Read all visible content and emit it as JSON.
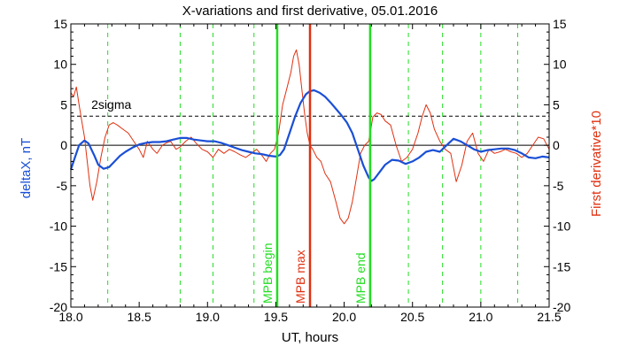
{
  "chart_data": {
    "type": "line",
    "title": "X-variations and first derivative, 05.01.2016",
    "xlabel": "UT, hours",
    "ylabel": "deltaX, nT",
    "ylabel_right": "First derivative*10",
    "xlim": [
      18.0,
      21.5
    ],
    "ylim": [
      -20,
      15
    ],
    "ylim_right": [
      -20,
      15
    ],
    "x_ticks": [
      "18.0",
      "18.5",
      "19.0",
      "19.5",
      "20.0",
      "20.5",
      "21.0",
      "21.5"
    ],
    "y_ticks": [
      "15",
      "10",
      "5",
      "0",
      "-5",
      "-10",
      "-15",
      "-20"
    ],
    "colors": {
      "deltax": "#1a4fd6",
      "derivative": "#e03010",
      "mpb": "#22dd22",
      "mpb_max": "#e03010",
      "dashed_green": "#22dd22"
    },
    "sigma_level": 3.6,
    "sigma_label": "2sigma",
    "zero_line": 0,
    "dashed_green_x": [
      18.27,
      18.8,
      19.04,
      19.34,
      20.47,
      20.72,
      21.0,
      21.27
    ],
    "vlines": [
      {
        "x": 19.51,
        "label": "MPB begin",
        "color": "#22dd22"
      },
      {
        "x": 19.75,
        "label": "MPB max",
        "color": "#e03010"
      },
      {
        "x": 20.19,
        "label": "MPB end",
        "color": "#22dd22"
      }
    ],
    "series": [
      {
        "name": "deltaX, nT",
        "axis": "left",
        "x": [
          18.0,
          18.03,
          18.06,
          18.1,
          18.13,
          18.17,
          18.2,
          18.24,
          18.28,
          18.32,
          18.36,
          18.4,
          18.45,
          18.5,
          18.55,
          18.6,
          18.65,
          18.7,
          18.75,
          18.8,
          18.85,
          18.9,
          18.95,
          19.0,
          19.05,
          19.1,
          19.15,
          19.2,
          19.25,
          19.3,
          19.35,
          19.4,
          19.45,
          19.5,
          19.53,
          19.56,
          19.6,
          19.64,
          19.68,
          19.72,
          19.75,
          19.78,
          19.82,
          19.86,
          19.9,
          19.94,
          19.98,
          20.02,
          20.06,
          20.1,
          20.14,
          20.18,
          20.2,
          20.22,
          20.26,
          20.3,
          20.35,
          20.4,
          20.45,
          20.5,
          20.55,
          20.6,
          20.65,
          20.7,
          20.75,
          20.8,
          20.85,
          20.9,
          20.95,
          21.0,
          21.05,
          21.1,
          21.15,
          21.2,
          21.25,
          21.3,
          21.35,
          21.4,
          21.45,
          21.5
        ],
        "values": [
          -3.0,
          -1.5,
          0.0,
          0.6,
          0.2,
          -1.2,
          -2.4,
          -2.9,
          -2.7,
          -2.0,
          -1.3,
          -0.8,
          -0.3,
          0.1,
          0.3,
          0.4,
          0.4,
          0.5,
          0.7,
          0.9,
          0.9,
          0.7,
          0.6,
          0.5,
          0.5,
          0.3,
          0.0,
          -0.3,
          -0.6,
          -0.8,
          -1.0,
          -1.1,
          -1.3,
          -1.4,
          -1.2,
          -0.5,
          1.5,
          3.5,
          5.2,
          6.3,
          6.7,
          6.8,
          6.5,
          6.0,
          5.3,
          4.5,
          3.7,
          2.8,
          1.5,
          -0.5,
          -2.5,
          -4.0,
          -4.4,
          -4.2,
          -3.3,
          -2.4,
          -1.8,
          -1.9,
          -2.3,
          -2.0,
          -1.5,
          -0.8,
          -0.6,
          -0.8,
          0.0,
          0.8,
          0.5,
          0.0,
          -0.5,
          -0.8,
          -0.6,
          -0.5,
          -0.4,
          -0.4,
          -0.6,
          -1.0,
          -1.5,
          -1.6,
          -1.4,
          -1.5
        ]
      },
      {
        "name": "First derivative*10",
        "axis": "right",
        "x": [
          18.0,
          18.02,
          18.04,
          18.06,
          18.08,
          18.1,
          18.12,
          18.14,
          18.16,
          18.19,
          18.22,
          18.25,
          18.28,
          18.31,
          18.34,
          18.38,
          18.42,
          18.46,
          18.5,
          18.53,
          18.56,
          18.6,
          18.63,
          18.67,
          18.7,
          18.73,
          18.77,
          18.8,
          18.84,
          18.88,
          18.92,
          18.96,
          19.0,
          19.04,
          19.08,
          19.12,
          19.16,
          19.2,
          19.24,
          19.28,
          19.32,
          19.36,
          19.4,
          19.43,
          19.46,
          19.49,
          19.52,
          19.55,
          19.58,
          19.61,
          19.63,
          19.65,
          19.67,
          19.69,
          19.71,
          19.73,
          19.75,
          19.77,
          19.8,
          19.83,
          19.86,
          19.9,
          19.94,
          19.97,
          20.0,
          20.03,
          20.06,
          20.09,
          20.12,
          20.15,
          20.18,
          20.21,
          20.24,
          20.27,
          20.3,
          20.34,
          20.38,
          20.42,
          20.46,
          20.5,
          20.54,
          20.57,
          20.6,
          20.63,
          20.66,
          20.7,
          20.74,
          20.78,
          20.82,
          20.86,
          20.9,
          20.94,
          20.98,
          21.02,
          21.06,
          21.1,
          21.14,
          21.18,
          21.22,
          21.26,
          21.3,
          21.34,
          21.38,
          21.42,
          21.46,
          21.5
        ],
        "values": [
          6.5,
          6.0,
          7.2,
          5.0,
          3.0,
          1.0,
          -2.0,
          -5.0,
          -6.8,
          -4.5,
          -1.5,
          1.0,
          2.5,
          2.8,
          2.5,
          2.0,
          1.5,
          0.5,
          -0.5,
          -1.5,
          0.5,
          -0.5,
          -1.0,
          0.0,
          0.3,
          0.5,
          -0.5,
          -0.2,
          0.5,
          1.0,
          0.2,
          -0.5,
          -0.8,
          -1.5,
          -0.5,
          -1.0,
          -0.5,
          -0.8,
          -1.2,
          -1.5,
          -1.0,
          -0.5,
          -1.3,
          -2.0,
          -1.0,
          -0.5,
          1.5,
          5.0,
          7.0,
          9.0,
          11.0,
          11.8,
          10.0,
          7.0,
          4.0,
          1.5,
          0.0,
          -0.5,
          -1.5,
          -2.0,
          -3.5,
          -4.5,
          -7.0,
          -9.0,
          -9.7,
          -9.0,
          -7.0,
          -4.0,
          -1.0,
          0.0,
          0.5,
          3.5,
          4.0,
          3.8,
          3.0,
          2.5,
          0.0,
          -2.0,
          -1.5,
          -0.5,
          1.5,
          3.5,
          5.0,
          4.0,
          2.0,
          0.5,
          -0.5,
          -1.0,
          -4.5,
          -2.5,
          0.5,
          1.5,
          -1.0,
          -2.0,
          -0.5,
          -1.0,
          -0.8,
          -0.5,
          -0.8,
          -1.0,
          -1.5,
          -1.0,
          0.0,
          1.0,
          0.8,
          -0.5
        ]
      }
    ]
  }
}
